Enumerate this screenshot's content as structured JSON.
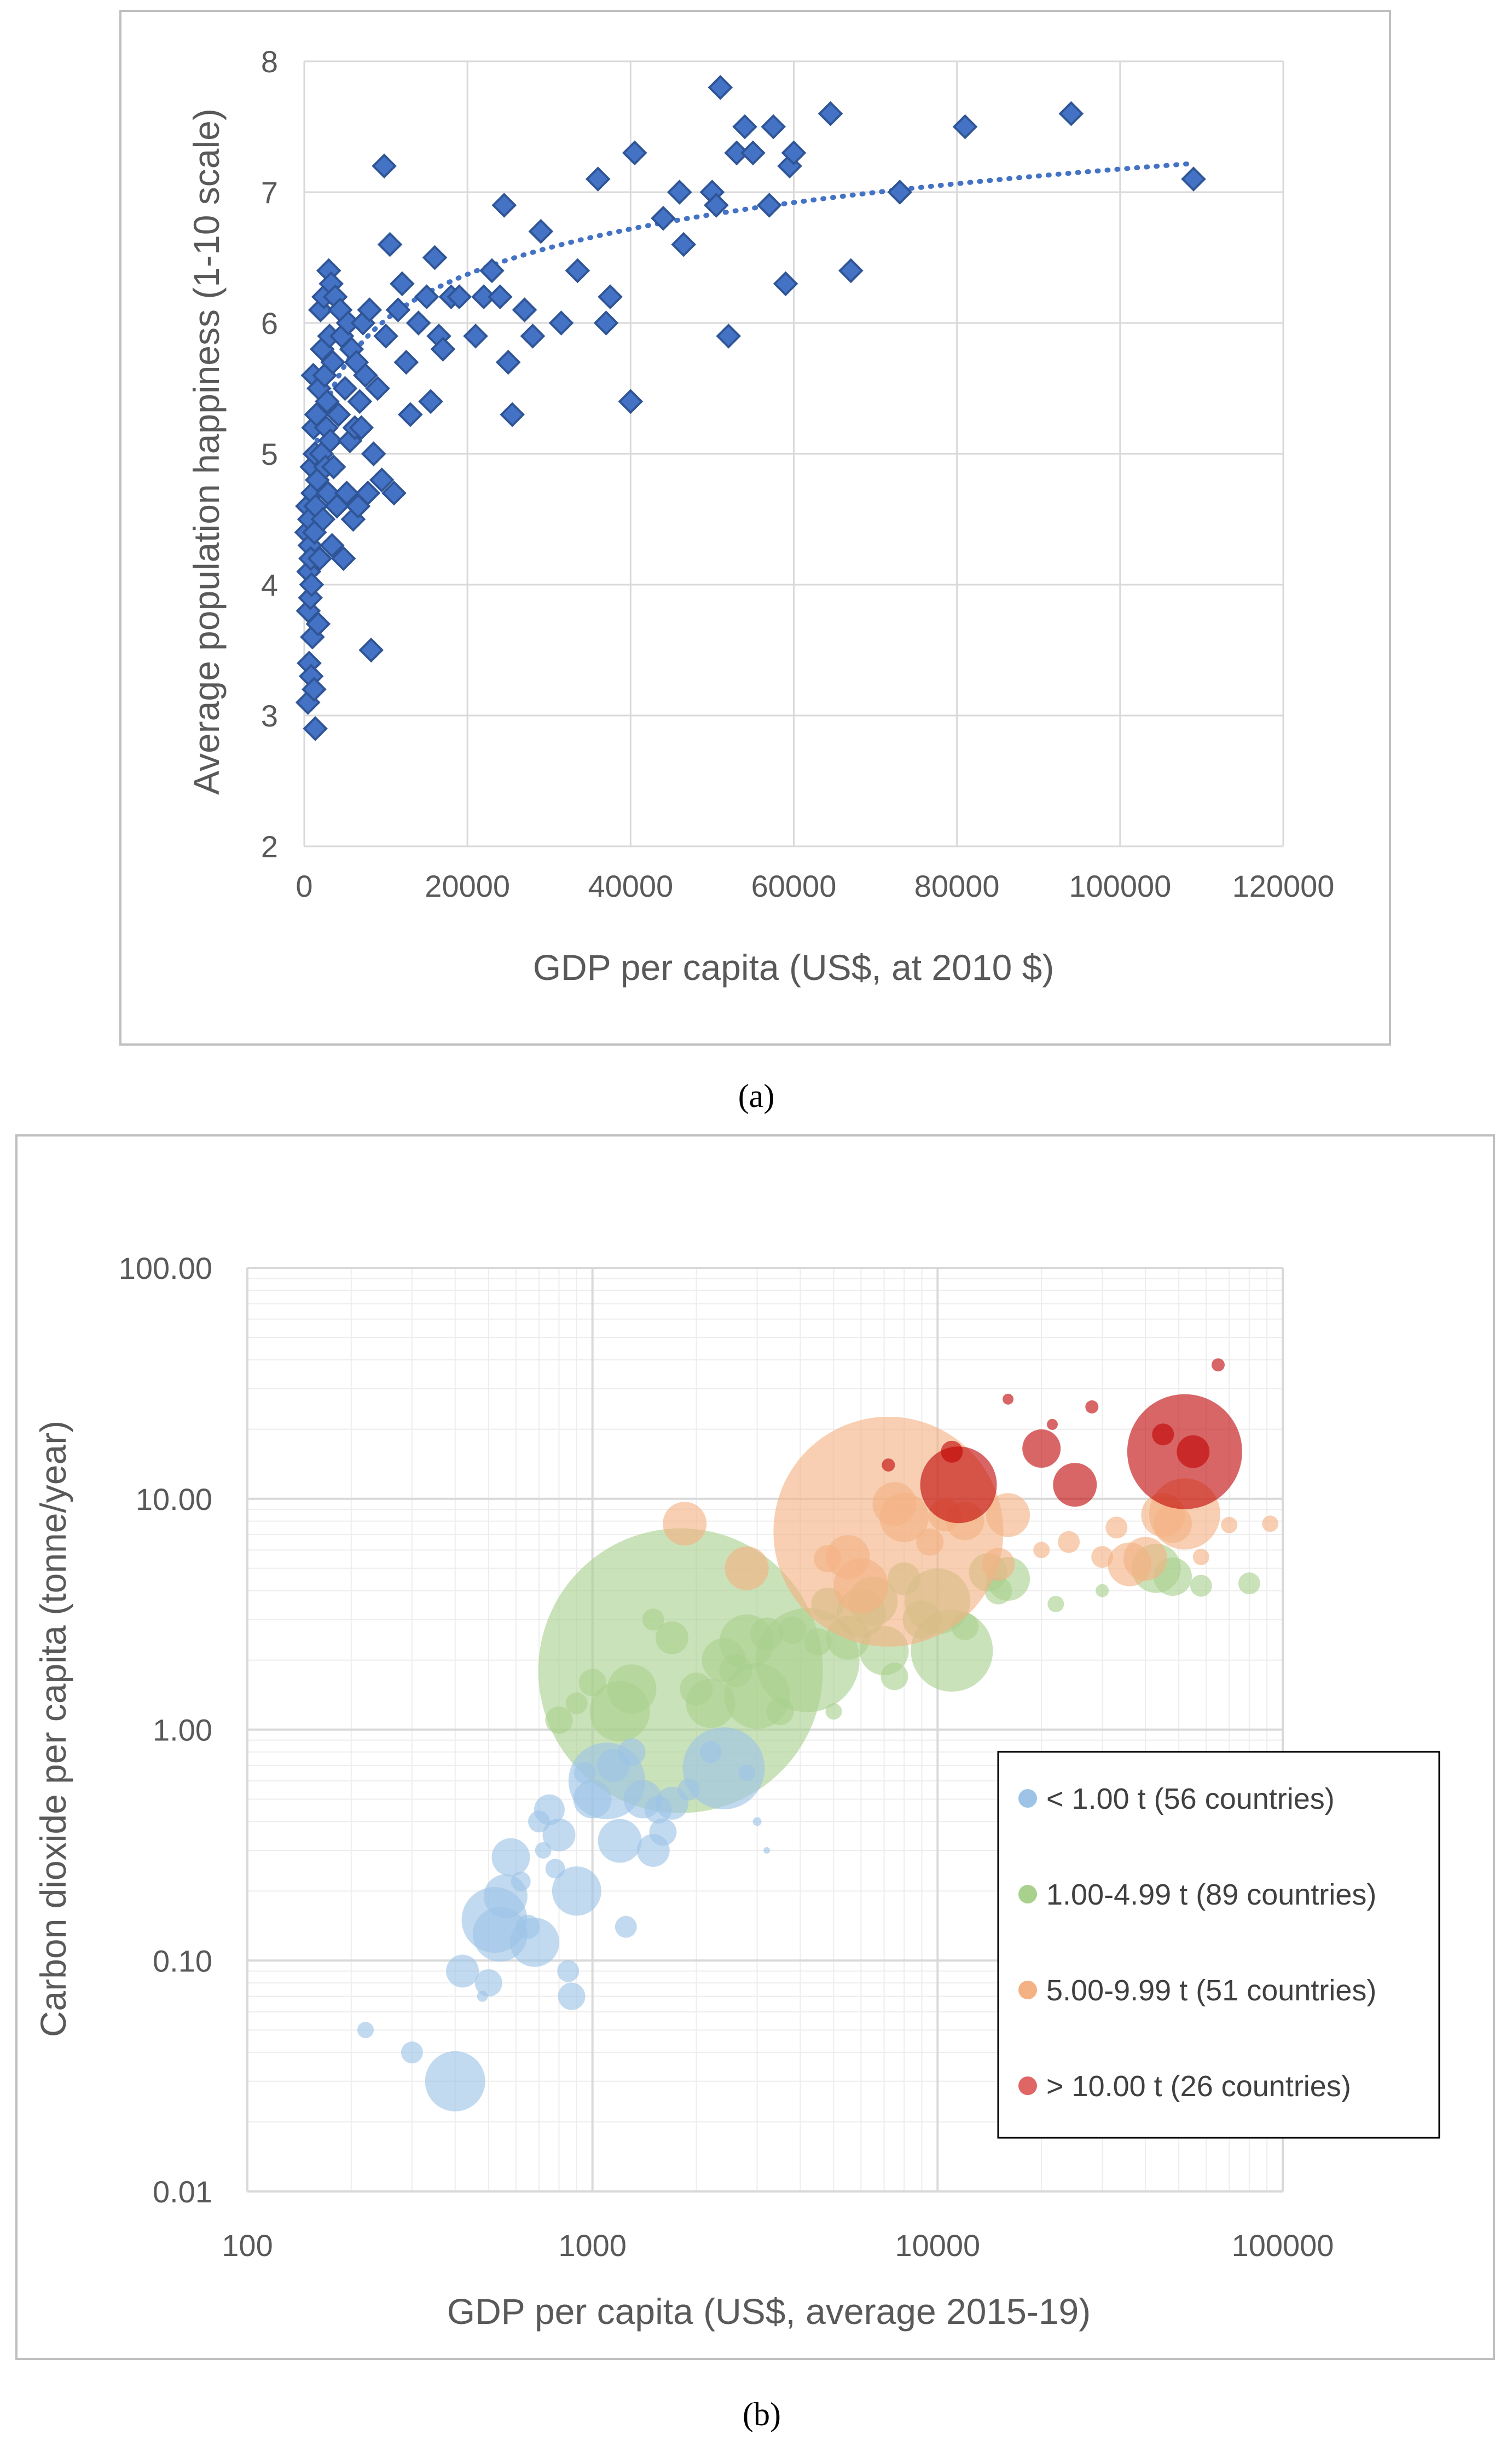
{
  "colors": {
    "marker_a": "#4472C4",
    "marker_a_stroke": "#2F5597",
    "trend_a": "#4472C4",
    "grid": "#D9D9D9",
    "frame": "#BFBFBF",
    "blue": "#9DC3E6",
    "green": "#A9D18E",
    "orange": "#F4B183",
    "red": "#C00000"
  },
  "chart_data": [
    {
      "type": "scatter",
      "panel_label": "(a)",
      "xlabel": "GDP per capita (US$, at 2010 $)",
      "ylabel": "Average population happiness (1-10 scale)",
      "xlim": [
        0,
        120000
      ],
      "ylim": [
        2,
        8
      ],
      "xticks": [
        "0",
        "20000",
        "40000",
        "60000",
        "80000",
        "100000",
        "120000"
      ],
      "yticks": [
        "2",
        "3",
        "4",
        "5",
        "6",
        "7",
        "8"
      ],
      "grid": true,
      "trendline": {
        "type": "logarithmic",
        "x_from": 300,
        "x_to": 109000,
        "a": 0.5,
        "b": 1.42
      },
      "points": [
        [
          300,
          4.4
        ],
        [
          400,
          4.6
        ],
        [
          450,
          3.1
        ],
        [
          500,
          3.8
        ],
        [
          550,
          4.1
        ],
        [
          600,
          3.4
        ],
        [
          650,
          4.5
        ],
        [
          700,
          4.3
        ],
        [
          750,
          3.9
        ],
        [
          800,
          4.2
        ],
        [
          850,
          3.3
        ],
        [
          900,
          4.0
        ],
        [
          950,
          4.9
        ],
        [
          1000,
          3.6
        ],
        [
          1050,
          4.7
        ],
        [
          1100,
          5.6
        ],
        [
          1150,
          5.2
        ],
        [
          1200,
          3.2
        ],
        [
          1250,
          4.4
        ],
        [
          1300,
          5.0
        ],
        [
          1350,
          2.9
        ],
        [
          1400,
          4.6
        ],
        [
          1500,
          5.3
        ],
        [
          1600,
          4.8
        ],
        [
          1700,
          3.7
        ],
        [
          1800,
          5.5
        ],
        [
          1900,
          4.2
        ],
        [
          2000,
          6.1
        ],
        [
          2100,
          5.0
        ],
        [
          2200,
          5.8
        ],
        [
          2300,
          4.5
        ],
        [
          2400,
          6.2
        ],
        [
          2500,
          5.6
        ],
        [
          2600,
          4.9
        ],
        [
          2700,
          5.2
        ],
        [
          2800,
          5.4
        ],
        [
          2900,
          4.7
        ],
        [
          3000,
          6.4
        ],
        [
          3100,
          5.9
        ],
        [
          3200,
          5.1
        ],
        [
          3300,
          6.3
        ],
        [
          3400,
          4.3
        ],
        [
          3500,
          5.7
        ],
        [
          3600,
          4.9
        ],
        [
          3800,
          6.2
        ],
        [
          4000,
          4.6
        ],
        [
          4200,
          5.3
        ],
        [
          4400,
          6.1
        ],
        [
          4600,
          5.9
        ],
        [
          4800,
          4.2
        ],
        [
          5000,
          5.5
        ],
        [
          5200,
          4.7
        ],
        [
          5400,
          6.0
        ],
        [
          5600,
          5.1
        ],
        [
          5800,
          5.8
        ],
        [
          6000,
          4.5
        ],
        [
          6200,
          5.2
        ],
        [
          6400,
          5.7
        ],
        [
          6600,
          4.6
        ],
        [
          6800,
          5.4
        ],
        [
          7000,
          5.2
        ],
        [
          7200,
          6.0
        ],
        [
          7500,
          5.6
        ],
        [
          7800,
          4.7
        ],
        [
          8000,
          6.1
        ],
        [
          8200,
          3.5
        ],
        [
          8500,
          5.0
        ],
        [
          9000,
          5.5
        ],
        [
          9500,
          4.8
        ],
        [
          9800,
          7.2
        ],
        [
          10000,
          5.9
        ],
        [
          10500,
          6.6
        ],
        [
          11000,
          4.7
        ],
        [
          11500,
          6.1
        ],
        [
          12000,
          6.3
        ],
        [
          12500,
          5.7
        ],
        [
          13000,
          5.3
        ],
        [
          14000,
          6.0
        ],
        [
          15000,
          6.2
        ],
        [
          15500,
          5.4
        ],
        [
          16000,
          6.5
        ],
        [
          16500,
          5.9
        ],
        [
          17000,
          5.8
        ],
        [
          18000,
          6.2
        ],
        [
          19000,
          6.2
        ],
        [
          21000,
          5.9
        ],
        [
          22000,
          6.2
        ],
        [
          23000,
          6.4
        ],
        [
          24000,
          6.2
        ],
        [
          24500,
          6.9
        ],
        [
          25000,
          5.7
        ],
        [
          25500,
          5.3
        ],
        [
          27000,
          6.1
        ],
        [
          28000,
          5.9
        ],
        [
          29000,
          6.7
        ],
        [
          31500,
          6.0
        ],
        [
          33500,
          6.4
        ],
        [
          36000,
          7.1
        ],
        [
          37000,
          6.0
        ],
        [
          37500,
          6.2
        ],
        [
          40000,
          5.4
        ],
        [
          40500,
          7.3
        ],
        [
          44000,
          6.8
        ],
        [
          46000,
          7.0
        ],
        [
          46500,
          6.6
        ],
        [
          50000,
          7.0
        ],
        [
          50500,
          6.9
        ],
        [
          51000,
          7.8
        ],
        [
          52000,
          5.9
        ],
        [
          53000,
          7.3
        ],
        [
          54000,
          7.5
        ],
        [
          55000,
          7.3
        ],
        [
          57000,
          6.9
        ],
        [
          57500,
          7.5
        ],
        [
          59000,
          6.3
        ],
        [
          59500,
          7.2
        ],
        [
          60000,
          7.3
        ],
        [
          64500,
          7.6
        ],
        [
          67000,
          6.4
        ],
        [
          73000,
          7.0
        ],
        [
          81000,
          7.5
        ],
        [
          94000,
          7.6
        ],
        [
          109000,
          7.1
        ]
      ]
    },
    {
      "type": "scatter",
      "subtype": "bubble",
      "panel_label": "(b)",
      "xlabel": "GDP per capita (US$, average 2015-19)",
      "ylabel": "Carbon dioxide per capita (tonne/year)",
      "xscale": "log",
      "yscale": "log",
      "xlim": [
        100,
        100000
      ],
      "ylim": [
        0.01,
        100
      ],
      "xticks": [
        "100",
        "1000",
        "10000",
        "100000"
      ],
      "yticks": [
        "0.01",
        "0.10",
        "1.00",
        "10.00",
        "100.00"
      ],
      "grid": true,
      "legend_position": "right",
      "series": [
        {
          "name": "< 1.00 t (56 countries)",
          "color_key": "blue",
          "points": [
            [
              220,
              0.05,
              15
            ],
            [
              300,
              0.04,
              20
            ],
            [
              400,
              0.03,
              55
            ],
            [
              420,
              0.09,
              30
            ],
            [
              480,
              0.07,
              10
            ],
            [
              500,
              0.08,
              25
            ],
            [
              520,
              0.15,
              60
            ],
            [
              540,
              0.13,
              50
            ],
            [
              560,
              0.19,
              40
            ],
            [
              580,
              0.28,
              35
            ],
            [
              620,
              0.22,
              18
            ],
            [
              650,
              0.14,
              22
            ],
            [
              680,
              0.12,
              45
            ],
            [
              700,
              0.4,
              20
            ],
            [
              720,
              0.3,
              15
            ],
            [
              750,
              0.45,
              28
            ],
            [
              780,
              0.25,
              18
            ],
            [
              800,
              0.35,
              30
            ],
            [
              850,
              0.09,
              20
            ],
            [
              870,
              0.07,
              25
            ],
            [
              900,
              0.2,
              45
            ],
            [
              950,
              0.65,
              20
            ],
            [
              1000,
              0.5,
              35
            ],
            [
              1100,
              0.6,
              70
            ],
            [
              1150,
              0.7,
              30
            ],
            [
              1200,
              0.33,
              40
            ],
            [
              1250,
              0.14,
              20
            ],
            [
              1300,
              0.8,
              25
            ],
            [
              1400,
              0.5,
              35
            ],
            [
              1500,
              0.3,
              30
            ],
            [
              1550,
              0.45,
              25
            ],
            [
              1600,
              0.36,
              25
            ],
            [
              1700,
              0.48,
              30
            ],
            [
              1900,
              0.55,
              20
            ],
            [
              2200,
              0.8,
              20
            ],
            [
              2400,
              0.68,
              75
            ],
            [
              2800,
              0.65,
              15
            ],
            [
              3000,
              0.4,
              8
            ],
            [
              3200,
              0.3,
              6
            ]
          ]
        },
        {
          "name": "1.00-4.99 t (89 countries)",
          "color_key": "green",
          "points": [
            [
              800,
              1.1,
              25
            ],
            [
              900,
              1.3,
              20
            ],
            [
              1000,
              1.6,
              25
            ],
            [
              1200,
              1.2,
              55
            ],
            [
              1300,
              1.5,
              45
            ],
            [
              1500,
              3.0,
              20
            ],
            [
              1700,
              2.5,
              30
            ],
            [
              1800,
              1.8,
              260
            ],
            [
              2000,
              1.5,
              30
            ],
            [
              2200,
              1.3,
              45
            ],
            [
              2400,
              2.0,
              40
            ],
            [
              2600,
              1.8,
              30
            ],
            [
              2800,
              2.4,
              50
            ],
            [
              3000,
              1.4,
              60
            ],
            [
              3200,
              2.6,
              30
            ],
            [
              3500,
              1.2,
              25
            ],
            [
              3800,
              2.7,
              25
            ],
            [
              4200,
              2.0,
              95
            ],
            [
              4500,
              2.4,
              25
            ],
            [
              4800,
              3.5,
              30
            ],
            [
              5000,
              1.2,
              15
            ],
            [
              5500,
              2.5,
              40
            ],
            [
              6000,
              3.2,
              45
            ],
            [
              6500,
              3.6,
              45
            ],
            [
              7000,
              2.2,
              45
            ],
            [
              7500,
              1.7,
              25
            ],
            [
              8000,
              4.5,
              30
            ],
            [
              9000,
              3.0,
              35
            ],
            [
              10000,
              3.6,
              60
            ],
            [
              11000,
              2.2,
              75
            ],
            [
              12000,
              2.8,
              25
            ],
            [
              14000,
              4.8,
              35
            ],
            [
              15000,
              4.0,
              25
            ],
            [
              16000,
              4.5,
              40
            ],
            [
              22000,
              3.5,
              15
            ],
            [
              30000,
              4.0,
              12
            ],
            [
              43000,
              5.0,
              45
            ],
            [
              48000,
              4.6,
              35
            ],
            [
              58000,
              4.2,
              20
            ],
            [
              80000,
              4.3,
              20
            ]
          ]
        },
        {
          "name": "5.00-9.99 t (51 countries)",
          "color_key": "orange",
          "points": [
            [
              1850,
              7.8,
              40
            ],
            [
              2800,
              5.0,
              40
            ],
            [
              4800,
              5.5,
              25
            ],
            [
              5500,
              5.6,
              40
            ],
            [
              6000,
              4.2,
              50
            ],
            [
              7200,
              7.2,
              210
            ],
            [
              7500,
              9.5,
              40
            ],
            [
              8000,
              8.3,
              45
            ],
            [
              9500,
              6.5,
              25
            ],
            [
              10500,
              8.5,
              30
            ],
            [
              12000,
              8.0,
              35
            ],
            [
              15000,
              5.2,
              30
            ],
            [
              16000,
              8.5,
              40
            ],
            [
              20000,
              6.0,
              15
            ],
            [
              24000,
              6.5,
              20
            ],
            [
              30000,
              5.6,
              20
            ],
            [
              33000,
              7.5,
              20
            ],
            [
              36000,
              5.2,
              40
            ],
            [
              40000,
              5.5,
              40
            ],
            [
              45000,
              8.5,
              40
            ],
            [
              48000,
              7.8,
              35
            ],
            [
              52000,
              8.6,
              65
            ],
            [
              58000,
              5.6,
              15
            ],
            [
              70000,
              7.7,
              15
            ],
            [
              92000,
              7.8,
              15
            ]
          ]
        },
        {
          "name": "> 10.00 t (26 countries)",
          "color_key": "red",
          "points": [
            [
              7200,
              14.0,
              12
            ],
            [
              11000,
              16.0,
              20
            ],
            [
              11500,
              11.5,
              70
            ],
            [
              16000,
              27.0,
              10
            ],
            [
              20000,
              16.5,
              35
            ],
            [
              21500,
              21.0,
              10
            ],
            [
              25000,
              11.5,
              40
            ],
            [
              28000,
              25.0,
              12
            ],
            [
              45000,
              19.0,
              20
            ],
            [
              52000,
              16.0,
              105
            ],
            [
              55000,
              16.0,
              30
            ],
            [
              65000,
              38.0,
              12
            ]
          ]
        }
      ]
    }
  ]
}
